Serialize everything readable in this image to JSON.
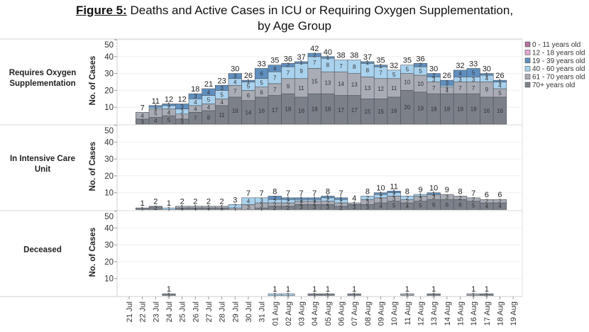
{
  "title": {
    "figure_label": "Figure 5:",
    "line1": " Deaths and Active Cases in ICU or Requiring Oxygen Supplementation,",
    "line2": "by Age Group"
  },
  "chart_data": {
    "type": "bar",
    "stacked": true,
    "title": "Figure 5: Deaths and Active Cases in ICU or Requiring Oxygen Supplementation, by Age Group",
    "xlabel": "",
    "ylabel": "No. of Cases",
    "ylim": [
      0,
      50
    ],
    "yticks": [
      "10",
      "20",
      "30",
      "40",
      "50"
    ],
    "grid": true,
    "legend_position": "right",
    "categories": [
      "21 Jul",
      "22 Jul",
      "23 Jul",
      "24 Jul",
      "25 Jul",
      "26 Jul",
      "27 Jul",
      "28 Jul",
      "29 Jul",
      "30 Jul",
      "31 Jul",
      "01 Aug",
      "02 Aug",
      "03 Aug",
      "04 Aug",
      "05 Aug",
      "06 Aug",
      "07 Aug",
      "08 Aug",
      "09 Aug",
      "10 Aug",
      "11 Aug",
      "12 Aug",
      "13 Aug",
      "14 Aug",
      "15 Aug",
      "16 Aug",
      "17 Aug",
      "18 Aug",
      "19 Aug"
    ],
    "legend": [
      {
        "name": "0 - 11 years old",
        "color": "#b3739f"
      },
      {
        "name": "12 - 18 years old",
        "color": "#e4a8d4"
      },
      {
        "name": "19 - 39 years old",
        "color": "#5f8fbf"
      },
      {
        "name": "40 - 60 years old",
        "color": "#a9d2ee"
      },
      {
        "name": "61 - 70 years old",
        "color": "#a9acb4"
      },
      {
        "name": "70+ years old",
        "color": "#7b8089"
      }
    ],
    "panels": [
      {
        "name": "Requires Oxygen Supplementation",
        "label_lines": [
          "Requires Oxygen",
          "Supplementation"
        ],
        "totals": [
          null,
          7,
          11,
          12,
          12,
          18,
          21,
          23,
          30,
          26,
          33,
          35,
          36,
          37,
          42,
          40,
          38,
          38,
          37,
          35,
          32,
          35,
          36,
          30,
          26,
          32,
          33,
          30,
          26,
          null
        ],
        "series": [
          {
            "name": "0 - 11 years old",
            "values": [
              0,
              0,
              0,
              0,
              0,
              0,
              0,
              0,
              0,
              0,
              0,
              0,
              0,
              0,
              0,
              0,
              0,
              0,
              0,
              0,
              0,
              0,
              0,
              0,
              0,
              0,
              0,
              0,
              0,
              0
            ]
          },
          {
            "name": "12 - 18 years old",
            "values": [
              0,
              0,
              0,
              0,
              0,
              0,
              0,
              0,
              0,
              0,
              0,
              0,
              0,
              0,
              0,
              0,
              0,
              0,
              0,
              0,
              0,
              0,
              0,
              0,
              0,
              0,
              0,
              0,
              0,
              0
            ]
          },
          {
            "name": "19 - 39 years old",
            "values": [
              0,
              0,
              1,
              1,
              3,
              3,
              4,
              3,
              3,
              1,
              6,
              4,
              2,
              1,
              2,
              1,
              0,
              0,
              1,
              1,
              0,
              0,
              2,
              2,
              3,
              4,
              5,
              1,
              1,
              0
            ]
          },
          {
            "name": "40 - 60 years old",
            "values": [
              0,
              0,
              1,
              2,
              3,
              4,
              5,
              5,
              4,
              5,
              5,
              7,
              7,
              9,
              7,
              8,
              7,
              8,
              8,
              7,
              5,
              5,
              5,
              3,
              1,
              3,
              3,
              4,
              4,
              0
            ]
          },
          {
            "name": "61 - 70 years old",
            "values": [
              0,
              4,
              5,
              4,
              3,
              4,
              4,
              4,
              7,
              6,
              6,
              7,
              9,
              11,
              15,
              13,
              14,
              13,
              13,
              12,
              11,
              10,
              10,
              7,
              4,
              7,
              7,
              9,
              5,
              0
            ]
          },
          {
            "name": "70+ years old",
            "values": [
              0,
              3,
              4,
              5,
              3,
              7,
              8,
              11,
              16,
              14,
              16,
              17,
              18,
              16,
              18,
              18,
              17,
              17,
              15,
              15,
              16,
              20,
              19,
              18,
              18,
              18,
              18,
              16,
              16,
              0
            ]
          }
        ]
      },
      {
        "name": "In Intensive Care Unit",
        "label_lines": [
          "In Intensive Care",
          "Unit"
        ],
        "totals": [
          null,
          1,
          2,
          1,
          2,
          2,
          2,
          2,
          3,
          7,
          7,
          8,
          7,
          7,
          7,
          8,
          7,
          4,
          8,
          10,
          11,
          8,
          9,
          10,
          9,
          8,
          7,
          6,
          6,
          null
        ],
        "series": [
          {
            "name": "0 - 11 years old",
            "values": [
              0,
              0,
              0,
              0,
              0,
              0,
              0,
              0,
              0,
              0,
              0,
              0,
              0,
              0,
              0,
              0,
              0,
              0,
              0,
              0,
              0,
              0,
              0,
              0,
              0,
              0,
              0,
              0,
              0,
              0
            ]
          },
          {
            "name": "12 - 18 years old",
            "values": [
              0,
              0,
              0,
              0,
              0,
              0,
              0,
              0,
              0,
              0,
              0,
              0,
              0,
              0,
              0,
              0,
              0,
              0,
              0,
              0,
              0,
              0,
              0,
              0,
              0,
              0,
              0,
              0,
              0,
              0
            ]
          },
          {
            "name": "19 - 39 years old",
            "values": [
              0,
              0,
              0,
              0,
              0,
              0,
              0,
              0,
              0,
              0,
              0,
              2,
              1,
              1,
              1,
              1,
              1,
              0,
              0,
              1,
              1,
              0,
              0,
              1,
              0,
              0,
              0,
              0,
              0,
              0
            ]
          },
          {
            "name": "40 - 60 years old",
            "values": [
              0,
              0,
              0,
              1,
              0,
              0,
              0,
              0,
              2,
              4,
              3,
              2,
              2,
              1,
              1,
              2,
              2,
              0,
              2,
              2,
              2,
              2,
              1,
              0,
              0,
              0,
              0,
              0,
              0,
              0
            ]
          },
          {
            "name": "61 - 70 years old",
            "values": [
              0,
              0,
              0,
              0,
              1,
              1,
              1,
              1,
              1,
              3,
              3,
              2,
              2,
              2,
              2,
              2,
              2,
              1,
              3,
              3,
              3,
              2,
              3,
              3,
              3,
              2,
              2,
              2,
              2,
              0
            ]
          },
          {
            "name": "70+ years old",
            "values": [
              0,
              1,
              2,
              0,
              1,
              1,
              1,
              1,
              0,
              0,
              1,
              2,
              2,
              3,
              3,
              3,
              2,
              3,
              3,
              4,
              5,
              4,
              5,
              6,
              6,
              6,
              5,
              4,
              4,
              0
            ]
          }
        ]
      },
      {
        "name": "Deceased",
        "label_lines": [
          "Deceased"
        ],
        "totals": [
          null,
          null,
          null,
          1,
          null,
          null,
          null,
          null,
          null,
          null,
          null,
          1,
          1,
          null,
          1,
          1,
          null,
          1,
          null,
          null,
          null,
          1,
          null,
          1,
          null,
          null,
          1,
          1,
          null,
          null
        ],
        "series": [
          {
            "name": "0 - 11 years old",
            "values": [
              0,
              0,
              0,
              0,
              0,
              0,
              0,
              0,
              0,
              0,
              0,
              0,
              0,
              0,
              0,
              0,
              0,
              0,
              0,
              0,
              0,
              0,
              0,
              0,
              0,
              0,
              0,
              0,
              0,
              0
            ]
          },
          {
            "name": "12 - 18 years old",
            "values": [
              0,
              0,
              0,
              0,
              0,
              0,
              0,
              0,
              0,
              0,
              0,
              0,
              0,
              0,
              0,
              0,
              0,
              0,
              0,
              0,
              0,
              0,
              0,
              0,
              0,
              0,
              0,
              0,
              0,
              0
            ]
          },
          {
            "name": "19 - 39 years old",
            "values": [
              0,
              0,
              0,
              0,
              0,
              0,
              0,
              0,
              0,
              0,
              0,
              0,
              0,
              0,
              0,
              0,
              0,
              0,
              0,
              0,
              0,
              0,
              0,
              0,
              0,
              0,
              0,
              0,
              0,
              0
            ]
          },
          {
            "name": "40 - 60 years old",
            "values": [
              0,
              0,
              0,
              0,
              0,
              0,
              0,
              0,
              0,
              0,
              0,
              1,
              1,
              0,
              0,
              0,
              0,
              0,
              0,
              0,
              0,
              0,
              0,
              0,
              0,
              0,
              0,
              0,
              0,
              0
            ]
          },
          {
            "name": "61 - 70 years old",
            "values": [
              0,
              0,
              0,
              0,
              0,
              0,
              0,
              0,
              0,
              0,
              0,
              0,
              0,
              0,
              0,
              0,
              0,
              0,
              0,
              0,
              0,
              1,
              0,
              0,
              0,
              0,
              1,
              0,
              0,
              0
            ]
          },
          {
            "name": "70+ years old",
            "values": [
              0,
              0,
              0,
              1,
              0,
              0,
              0,
              0,
              0,
              0,
              0,
              0,
              0,
              0,
              1,
              1,
              0,
              1,
              0,
              0,
              0,
              0,
              0,
              1,
              0,
              0,
              0,
              1,
              0,
              0
            ]
          }
        ]
      }
    ]
  }
}
